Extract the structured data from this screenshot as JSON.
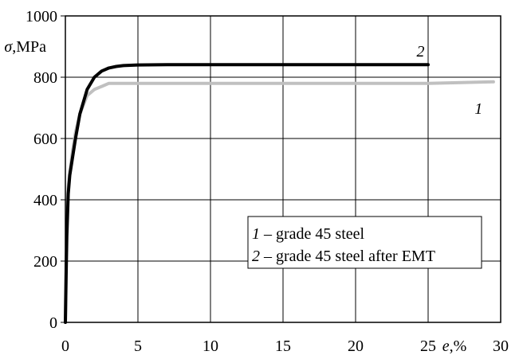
{
  "chart_data": {
    "type": "line",
    "ylabel_symbol": "σ",
    "ylabel_unit": ",MPa",
    "xlabel_symbol": "e",
    "xlabel_unit": ",%",
    "xlim": [
      0,
      30
    ],
    "ylim": [
      0,
      1000
    ],
    "xticks": [
      0,
      5,
      10,
      15,
      20,
      25,
      30
    ],
    "yticks": [
      0,
      200,
      400,
      600,
      800,
      1000
    ],
    "grid": true,
    "legend_placement": "lower-right",
    "legend": [
      {
        "num": "1",
        "text": " – grade 45 steel"
      },
      {
        "num": "2",
        "text": " – grade 45 steel after EMT"
      }
    ],
    "series": [
      {
        "name": "1",
        "color": "#c0c0c0",
        "x": [
          0,
          0.05,
          0.1,
          0.2,
          0.3,
          0.5,
          0.7,
          1.0,
          1.5,
          2.0,
          2.5,
          3.0,
          5,
          10,
          15,
          20,
          25,
          27,
          29.5
        ],
        "y": [
          0,
          200,
          340,
          440,
          490,
          560,
          620,
          680,
          740,
          760,
          770,
          780,
          780,
          780,
          780,
          780,
          780,
          782,
          785
        ]
      },
      {
        "name": "2",
        "color": "#000000",
        "x": [
          0,
          0.05,
          0.1,
          0.2,
          0.3,
          0.5,
          0.7,
          1.0,
          1.5,
          2.0,
          2.5,
          3.0,
          3.5,
          4.0,
          5,
          7,
          10,
          15,
          20,
          25
        ],
        "y": [
          0,
          150,
          280,
          420,
          480,
          540,
          600,
          680,
          760,
          800,
          820,
          830,
          835,
          838,
          840,
          841,
          841,
          841,
          841,
          841
        ]
      }
    ],
    "curve_labels": [
      {
        "text": "2",
        "x": 24.2,
        "y": 868
      },
      {
        "text": "1",
        "x": 28.2,
        "y": 680
      }
    ]
  }
}
